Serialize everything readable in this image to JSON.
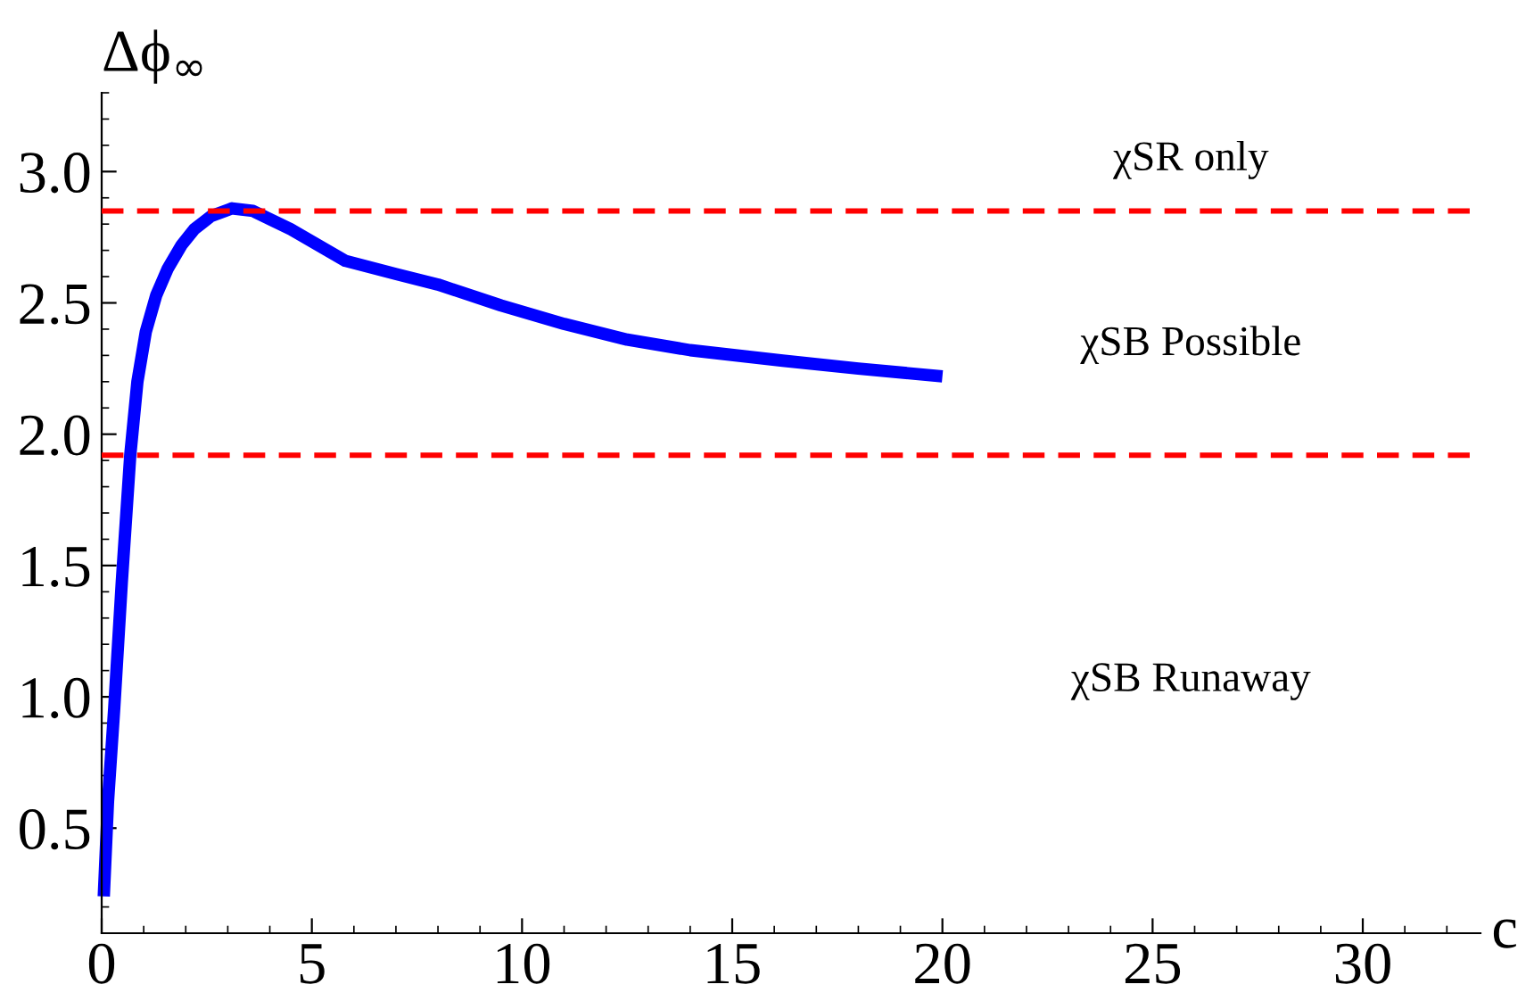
{
  "chart_data": {
    "type": "line",
    "xlabel": "c",
    "ylabel": "Δϕ$_{∞}$",
    "x": [
      0.05,
      0.15,
      0.3,
      0.48,
      0.68,
      0.85,
      1.05,
      1.3,
      1.57,
      1.9,
      2.2,
      2.6,
      3.1,
      3.6,
      4.5,
      5.8,
      7.0,
      8.0,
      9.5,
      11.0,
      12.5,
      14.0,
      16.2,
      18.0,
      20.0
    ],
    "series": [
      {
        "color": "#0000ff",
        "values": [
          0.24,
          0.6,
          0.96,
          1.44,
          1.92,
          2.2,
          2.39,
          2.53,
          2.63,
          2.72,
          2.78,
          2.83,
          2.86,
          2.85,
          2.78,
          2.66,
          2.61,
          2.57,
          2.49,
          2.42,
          2.36,
          2.32,
          2.28,
          2.25,
          2.22
        ]
      }
    ],
    "xlim": [
      0,
      32.8
    ],
    "ylim": [
      0.1,
      3.3
    ],
    "xticks": [
      0,
      5,
      10,
      15,
      20,
      25,
      30
    ],
    "yticks": [
      0.5,
      {
        "value": 1,
        "label": "1.0"
      },
      1.5,
      {
        "value": 2,
        "label": "2.0"
      },
      2.5,
      {
        "value": 3,
        "label": "3.0"
      }
    ],
    "ref_lines": [
      {
        "axis": "y",
        "value": 2.85,
        "color": "#ff0000",
        "line_style": "dashed"
      },
      {
        "axis": "y",
        "value": 1.92,
        "color": "#ff0000",
        "line_style": "dashed"
      }
    ],
    "annotations": [
      "χSR only",
      "χSB Possible",
      "χSB Runaway"
    ],
    "grid": false,
    "legend": false,
    "marker": "none",
    "line_style": "solid"
  }
}
